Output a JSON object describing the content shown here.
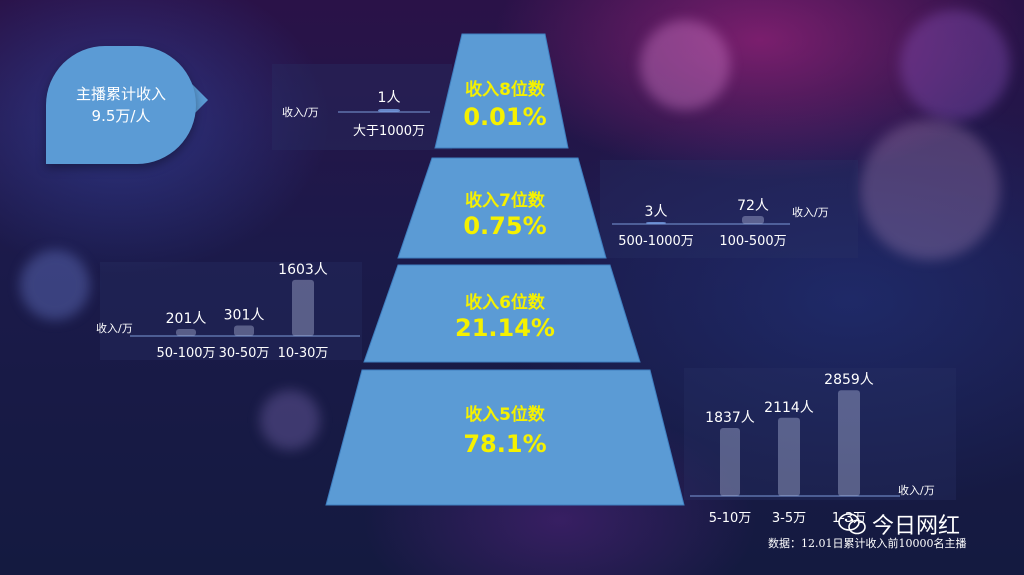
{
  "badge": {
    "line1": "主播累计收入",
    "line2": "9.5万/人"
  },
  "colors": {
    "tier_fill": "#5b9bd5",
    "tier_text": "#f5f100",
    "bar_fill": "rgba(200,210,240,0.35)"
  },
  "chart_data": [
    {
      "type": "bar",
      "tier": {
        "title": "收入8位数",
        "percent": "0.01%"
      },
      "unit_label": "收入/万",
      "categories": [
        "大于1000万"
      ],
      "values": [
        1
      ],
      "value_labels": [
        "1人"
      ]
    },
    {
      "type": "bar",
      "tier": {
        "title": "收入7位数",
        "percent": "0.75%"
      },
      "unit_label": "收入/万",
      "categories": [
        "500-1000万",
        "100-500万"
      ],
      "values": [
        3,
        72
      ],
      "value_labels": [
        "3人",
        "72人"
      ]
    },
    {
      "type": "bar",
      "tier": {
        "title": "收入6位数",
        "percent": "21.14%"
      },
      "unit_label": "收入/万",
      "categories": [
        "50-100万",
        "30-50万",
        "10-30万"
      ],
      "values": [
        201,
        301,
        1603
      ],
      "value_labels": [
        "201人",
        "301人",
        "1603人"
      ]
    },
    {
      "type": "bar",
      "tier": {
        "title": "收入5位数",
        "percent": "78.1%"
      },
      "unit_label": "收入/万",
      "categories": [
        "5-10万",
        "3-5万",
        "1-3万"
      ],
      "values": [
        1837,
        2114,
        2859
      ],
      "value_labels": [
        "1837人",
        "2114人",
        "2859人"
      ]
    }
  ],
  "footer": {
    "source": "数据：12.01日累计收入前10000名主播"
  },
  "brand": {
    "name": "今日网红",
    "icon": "wechat-icon"
  }
}
